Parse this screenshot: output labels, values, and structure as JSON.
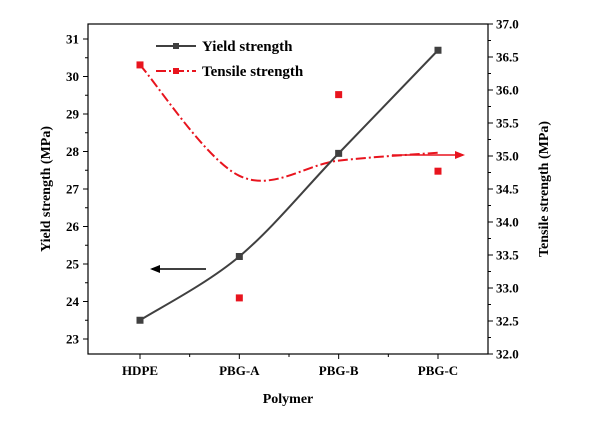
{
  "chart_data": {
    "type": "line",
    "categories": [
      "HDPE",
      "PBG-A",
      "PBG-B",
      "PBG-C"
    ],
    "xlabel": "Polymer",
    "ylabel_left": "Yield strength (MPa)",
    "ylabel_right": "Tensile strength (MPa)",
    "ylim_left": [
      22.6,
      31.4
    ],
    "yticks_left": [
      23,
      24,
      25,
      26,
      27,
      28,
      29,
      30,
      31
    ],
    "yticks_left_labels": [
      "23",
      "24",
      "25",
      "26",
      "27",
      "28",
      "29",
      "30",
      "31"
    ],
    "ylim_right": [
      32.0,
      37.0
    ],
    "yticks_right": [
      32.0,
      32.5,
      33.0,
      33.5,
      34.0,
      34.5,
      35.0,
      35.5,
      36.0,
      36.5,
      37.0
    ],
    "yticks_right_labels": [
      "32.0",
      "32.5",
      "33.0",
      "33.5",
      "34.0",
      "34.5",
      "35.0",
      "35.5",
      "36.0",
      "36.5",
      "37.0"
    ],
    "series": [
      {
        "name": "Yield strength",
        "axis": "left",
        "color": "#404040",
        "marker": "square",
        "line": "solid",
        "values": [
          23.5,
          25.2,
          27.95,
          30.7
        ]
      },
      {
        "name": "Tensile strength",
        "axis": "right",
        "color": "#e8141e",
        "marker": "square",
        "line": "dash-dot",
        "values": [
          36.38,
          32.85,
          35.93,
          34.77
        ],
        "fit_curve": [
          36.38,
          34.7,
          34.93,
          35.05
        ]
      }
    ],
    "annotations": [
      {
        "name": "arrow-to-left-axis",
        "direction": "left",
        "series": "Yield strength",
        "color": "#000000"
      },
      {
        "name": "arrow-to-right-axis",
        "direction": "right",
        "series": "Tensile strength",
        "color": "#e8141e"
      }
    ]
  }
}
